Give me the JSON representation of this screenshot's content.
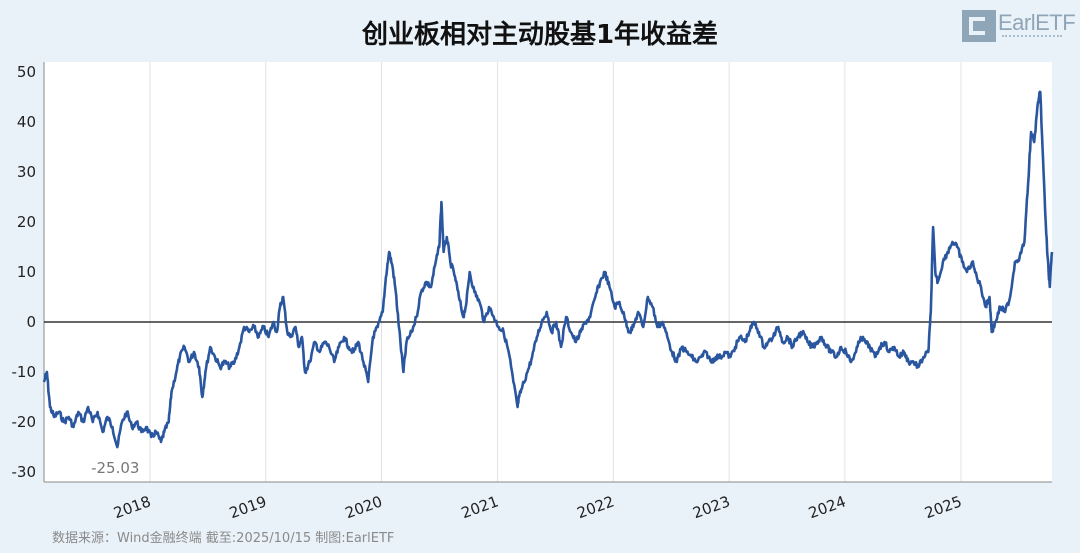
{
  "title": "创业板相对主动股基1年收益差",
  "logo_text": "EarlETF",
  "source_note": "数据来源：Wind金融终端 截至:2025/10/15 制图:EarlETF",
  "colors": {
    "line": "#2a56a0",
    "zero_line": "#333333",
    "grid": "#e2e2e2",
    "background": "#e9f2f9"
  },
  "chart_data": {
    "type": "line",
    "title": "创业板相对主动股基1年收益差",
    "xlabel": "",
    "ylabel": "",
    "ylim": [
      -32,
      52
    ],
    "xlim": [
      "2017-02-01",
      "2025-10-15"
    ],
    "yticks": [
      -30,
      -20,
      -10,
      0,
      10,
      20,
      30,
      40,
      50
    ],
    "xticks": [
      {
        "label": "2018",
        "date": "2018-01-01"
      },
      {
        "label": "2019",
        "date": "2019-01-01"
      },
      {
        "label": "2020",
        "date": "2020-01-01"
      },
      {
        "label": "2021",
        "date": "2021-01-01"
      },
      {
        "label": "2022",
        "date": "2022-01-01"
      },
      {
        "label": "2023",
        "date": "2023-01-01"
      },
      {
        "label": "2024",
        "date": "2024-01-01"
      },
      {
        "label": "2025",
        "date": "2025-01-01"
      }
    ],
    "grid": "vertical",
    "reference_line": 0,
    "annotation": {
      "text": "-25.03",
      "x": "2017-09-20",
      "y": -25.03
    },
    "series": [
      {
        "points": [
          [
            "2017-02-01",
            -12
          ],
          [
            "2017-02-10",
            -10
          ],
          [
            "2017-02-20",
            -17
          ],
          [
            "2017-03-05",
            -19
          ],
          [
            "2017-03-20",
            -18
          ],
          [
            "2017-04-05",
            -20
          ],
          [
            "2017-04-20",
            -19
          ],
          [
            "2017-05-05",
            -21
          ],
          [
            "2017-05-20",
            -18
          ],
          [
            "2017-06-05",
            -20
          ],
          [
            "2017-06-20",
            -17
          ],
          [
            "2017-07-05",
            -20
          ],
          [
            "2017-07-20",
            -18
          ],
          [
            "2017-08-05",
            -22
          ],
          [
            "2017-08-20",
            -19
          ],
          [
            "2017-09-05",
            -21
          ],
          [
            "2017-09-20",
            -25.03
          ],
          [
            "2017-10-05",
            -20
          ],
          [
            "2017-10-20",
            -18
          ],
          [
            "2017-11-05",
            -21
          ],
          [
            "2017-11-20",
            -20
          ],
          [
            "2017-12-05",
            -22
          ],
          [
            "2017-12-20",
            -21
          ],
          [
            "2018-01-05",
            -23
          ],
          [
            "2018-01-20",
            -22
          ],
          [
            "2018-02-05",
            -24
          ],
          [
            "2018-02-15",
            -22
          ],
          [
            "2018-03-01",
            -20
          ],
          [
            "2018-03-10",
            -14
          ],
          [
            "2018-03-25",
            -10
          ],
          [
            "2018-04-05",
            -7
          ],
          [
            "2018-04-20",
            -5
          ],
          [
            "2018-05-05",
            -8
          ],
          [
            "2018-05-20",
            -6
          ],
          [
            "2018-06-05",
            -9
          ],
          [
            "2018-06-15",
            -15
          ],
          [
            "2018-06-25",
            -10
          ],
          [
            "2018-07-10",
            -5
          ],
          [
            "2018-07-25",
            -7
          ],
          [
            "2018-08-10",
            -9
          ],
          [
            "2018-08-25",
            -8
          ],
          [
            "2018-09-10",
            -9
          ],
          [
            "2018-09-25",
            -8
          ],
          [
            "2018-10-10",
            -5
          ],
          [
            "2018-10-25",
            -1
          ],
          [
            "2018-11-10",
            -2
          ],
          [
            "2018-11-25",
            -1
          ],
          [
            "2018-12-10",
            -3
          ],
          [
            "2018-12-25",
            -1
          ],
          [
            "2019-01-10",
            -3
          ],
          [
            "2019-01-25",
            0
          ],
          [
            "2019-02-05",
            -2
          ],
          [
            "2019-02-15",
            3
          ],
          [
            "2019-02-25",
            5
          ],
          [
            "2019-03-10",
            -2
          ],
          [
            "2019-03-20",
            -3
          ],
          [
            "2019-04-05",
            -1
          ],
          [
            "2019-04-15",
            -5
          ],
          [
            "2019-04-25",
            -3
          ],
          [
            "2019-05-05",
            -10
          ],
          [
            "2019-05-20",
            -8
          ],
          [
            "2019-06-05",
            -4
          ],
          [
            "2019-06-20",
            -6
          ],
          [
            "2019-07-05",
            -4
          ],
          [
            "2019-07-20",
            -5
          ],
          [
            "2019-08-05",
            -8
          ],
          [
            "2019-08-20",
            -5
          ],
          [
            "2019-09-05",
            -3
          ],
          [
            "2019-09-20",
            -5
          ],
          [
            "2019-10-05",
            -6
          ],
          [
            "2019-10-20",
            -4
          ],
          [
            "2019-11-05",
            -8
          ],
          [
            "2019-11-20",
            -12
          ],
          [
            "2019-12-05",
            -3
          ],
          [
            "2019-12-20",
            -1
          ],
          [
            "2020-01-05",
            2
          ],
          [
            "2020-01-15",
            9
          ],
          [
            "2020-01-25",
            14
          ],
          [
            "2020-02-05",
            11
          ],
          [
            "2020-02-15",
            6
          ],
          [
            "2020-02-25",
            -1
          ],
          [
            "2020-03-10",
            -10
          ],
          [
            "2020-03-20",
            -4
          ],
          [
            "2020-04-05",
            -2
          ],
          [
            "2020-04-20",
            1
          ],
          [
            "2020-05-05",
            6
          ],
          [
            "2020-05-20",
            8
          ],
          [
            "2020-06-05",
            7
          ],
          [
            "2020-06-20",
            12
          ],
          [
            "2020-07-01",
            15
          ],
          [
            "2020-07-08",
            24
          ],
          [
            "2020-07-15",
            14
          ],
          [
            "2020-07-25",
            17
          ],
          [
            "2020-08-05",
            12
          ],
          [
            "2020-08-20",
            9
          ],
          [
            "2020-09-01",
            5
          ],
          [
            "2020-09-15",
            1
          ],
          [
            "2020-09-25",
            4
          ],
          [
            "2020-10-05",
            10
          ],
          [
            "2020-10-20",
            6
          ],
          [
            "2020-11-05",
            4
          ],
          [
            "2020-11-20",
            0
          ],
          [
            "2020-12-05",
            3
          ],
          [
            "2020-12-20",
            1
          ],
          [
            "2021-01-05",
            -1
          ],
          [
            "2021-01-20",
            -2
          ],
          [
            "2021-02-05",
            -6
          ],
          [
            "2021-02-20",
            -12
          ],
          [
            "2021-03-05",
            -17
          ],
          [
            "2021-03-10",
            -15
          ],
          [
            "2021-03-20",
            -13
          ],
          [
            "2021-04-05",
            -10
          ],
          [
            "2021-04-20",
            -7
          ],
          [
            "2021-05-05",
            -3
          ],
          [
            "2021-05-20",
            0
          ],
          [
            "2021-06-05",
            2
          ],
          [
            "2021-06-20",
            -2
          ],
          [
            "2021-07-05",
            0
          ],
          [
            "2021-07-20",
            -5
          ],
          [
            "2021-08-05",
            1
          ],
          [
            "2021-08-20",
            -2
          ],
          [
            "2021-09-05",
            -4
          ],
          [
            "2021-09-20",
            -2
          ],
          [
            "2021-10-05",
            0
          ],
          [
            "2021-10-20",
            1
          ],
          [
            "2021-11-05",
            5
          ],
          [
            "2021-11-20",
            8
          ],
          [
            "2021-12-05",
            10
          ],
          [
            "2021-12-20",
            7
          ],
          [
            "2022-01-05",
            3
          ],
          [
            "2022-01-20",
            4
          ],
          [
            "2022-02-05",
            1
          ],
          [
            "2022-02-20",
            -2
          ],
          [
            "2022-03-05",
            -1
          ],
          [
            "2022-03-20",
            2
          ],
          [
            "2022-04-05",
            -1
          ],
          [
            "2022-04-20",
            5
          ],
          [
            "2022-05-05",
            3
          ],
          [
            "2022-05-20",
            -1
          ],
          [
            "2022-06-05",
            0
          ],
          [
            "2022-06-20",
            -3
          ],
          [
            "2022-07-05",
            -6
          ],
          [
            "2022-07-20",
            -8
          ],
          [
            "2022-08-05",
            -5
          ],
          [
            "2022-08-20",
            -6
          ],
          [
            "2022-09-05",
            -7
          ],
          [
            "2022-09-20",
            -8
          ],
          [
            "2022-10-05",
            -7
          ],
          [
            "2022-10-20",
            -6
          ],
          [
            "2022-11-05",
            -8
          ],
          [
            "2022-11-20",
            -7
          ],
          [
            "2022-12-05",
            -7
          ],
          [
            "2022-12-20",
            -6
          ],
          [
            "2023-01-05",
            -7
          ],
          [
            "2023-01-20",
            -5
          ],
          [
            "2023-02-05",
            -3
          ],
          [
            "2023-02-20",
            -4
          ],
          [
            "2023-03-05",
            -2
          ],
          [
            "2023-03-20",
            0
          ],
          [
            "2023-04-05",
            -2
          ],
          [
            "2023-04-20",
            -5
          ],
          [
            "2023-05-05",
            -4
          ],
          [
            "2023-05-20",
            -3
          ],
          [
            "2023-06-05",
            -1
          ],
          [
            "2023-06-20",
            -4
          ],
          [
            "2023-07-05",
            -3
          ],
          [
            "2023-07-20",
            -5
          ],
          [
            "2023-08-05",
            -3
          ],
          [
            "2023-08-20",
            -2
          ],
          [
            "2023-09-05",
            -4
          ],
          [
            "2023-09-20",
            -5
          ],
          [
            "2023-10-05",
            -4
          ],
          [
            "2023-10-20",
            -3
          ],
          [
            "2023-11-05",
            -5
          ],
          [
            "2023-11-20",
            -6
          ],
          [
            "2023-12-05",
            -7
          ],
          [
            "2023-12-20",
            -5
          ],
          [
            "2024-01-05",
            -6
          ],
          [
            "2024-01-20",
            -8
          ],
          [
            "2024-02-05",
            -6
          ],
          [
            "2024-02-20",
            -3
          ],
          [
            "2024-03-05",
            -4
          ],
          [
            "2024-03-20",
            -5
          ],
          [
            "2024-04-05",
            -7
          ],
          [
            "2024-04-20",
            -5
          ],
          [
            "2024-05-05",
            -4
          ],
          [
            "2024-05-20",
            -6
          ],
          [
            "2024-06-05",
            -5
          ],
          [
            "2024-06-20",
            -7
          ],
          [
            "2024-07-05",
            -6
          ],
          [
            "2024-07-20",
            -8
          ],
          [
            "2024-08-05",
            -8
          ],
          [
            "2024-08-20",
            -9
          ],
          [
            "2024-09-05",
            -7
          ],
          [
            "2024-09-20",
            -6
          ],
          [
            "2024-09-28",
            2
          ],
          [
            "2024-10-05",
            19
          ],
          [
            "2024-10-12",
            10
          ],
          [
            "2024-10-20",
            8
          ],
          [
            "2024-11-05",
            12
          ],
          [
            "2024-11-20",
            14
          ],
          [
            "2024-12-05",
            16
          ],
          [
            "2024-12-20",
            15
          ],
          [
            "2025-01-05",
            12
          ],
          [
            "2025-01-20",
            10
          ],
          [
            "2025-02-05",
            12
          ],
          [
            "2025-02-20",
            9
          ],
          [
            "2025-03-05",
            7
          ],
          [
            "2025-03-20",
            3
          ],
          [
            "2025-04-01",
            5
          ],
          [
            "2025-04-08",
            -2
          ],
          [
            "2025-04-20",
            0
          ],
          [
            "2025-05-05",
            3
          ],
          [
            "2025-05-20",
            2
          ],
          [
            "2025-06-05",
            5
          ],
          [
            "2025-06-20",
            12
          ],
          [
            "2025-07-05",
            13
          ],
          [
            "2025-07-20",
            16
          ],
          [
            "2025-08-01",
            28
          ],
          [
            "2025-08-10",
            38
          ],
          [
            "2025-08-20",
            36
          ],
          [
            "2025-09-01",
            44
          ],
          [
            "2025-09-08",
            46
          ],
          [
            "2025-09-15",
            35
          ],
          [
            "2025-09-25",
            20
          ],
          [
            "2025-10-01",
            13
          ],
          [
            "2025-10-08",
            7
          ],
          [
            "2025-10-15",
            14
          ]
        ]
      }
    ]
  }
}
